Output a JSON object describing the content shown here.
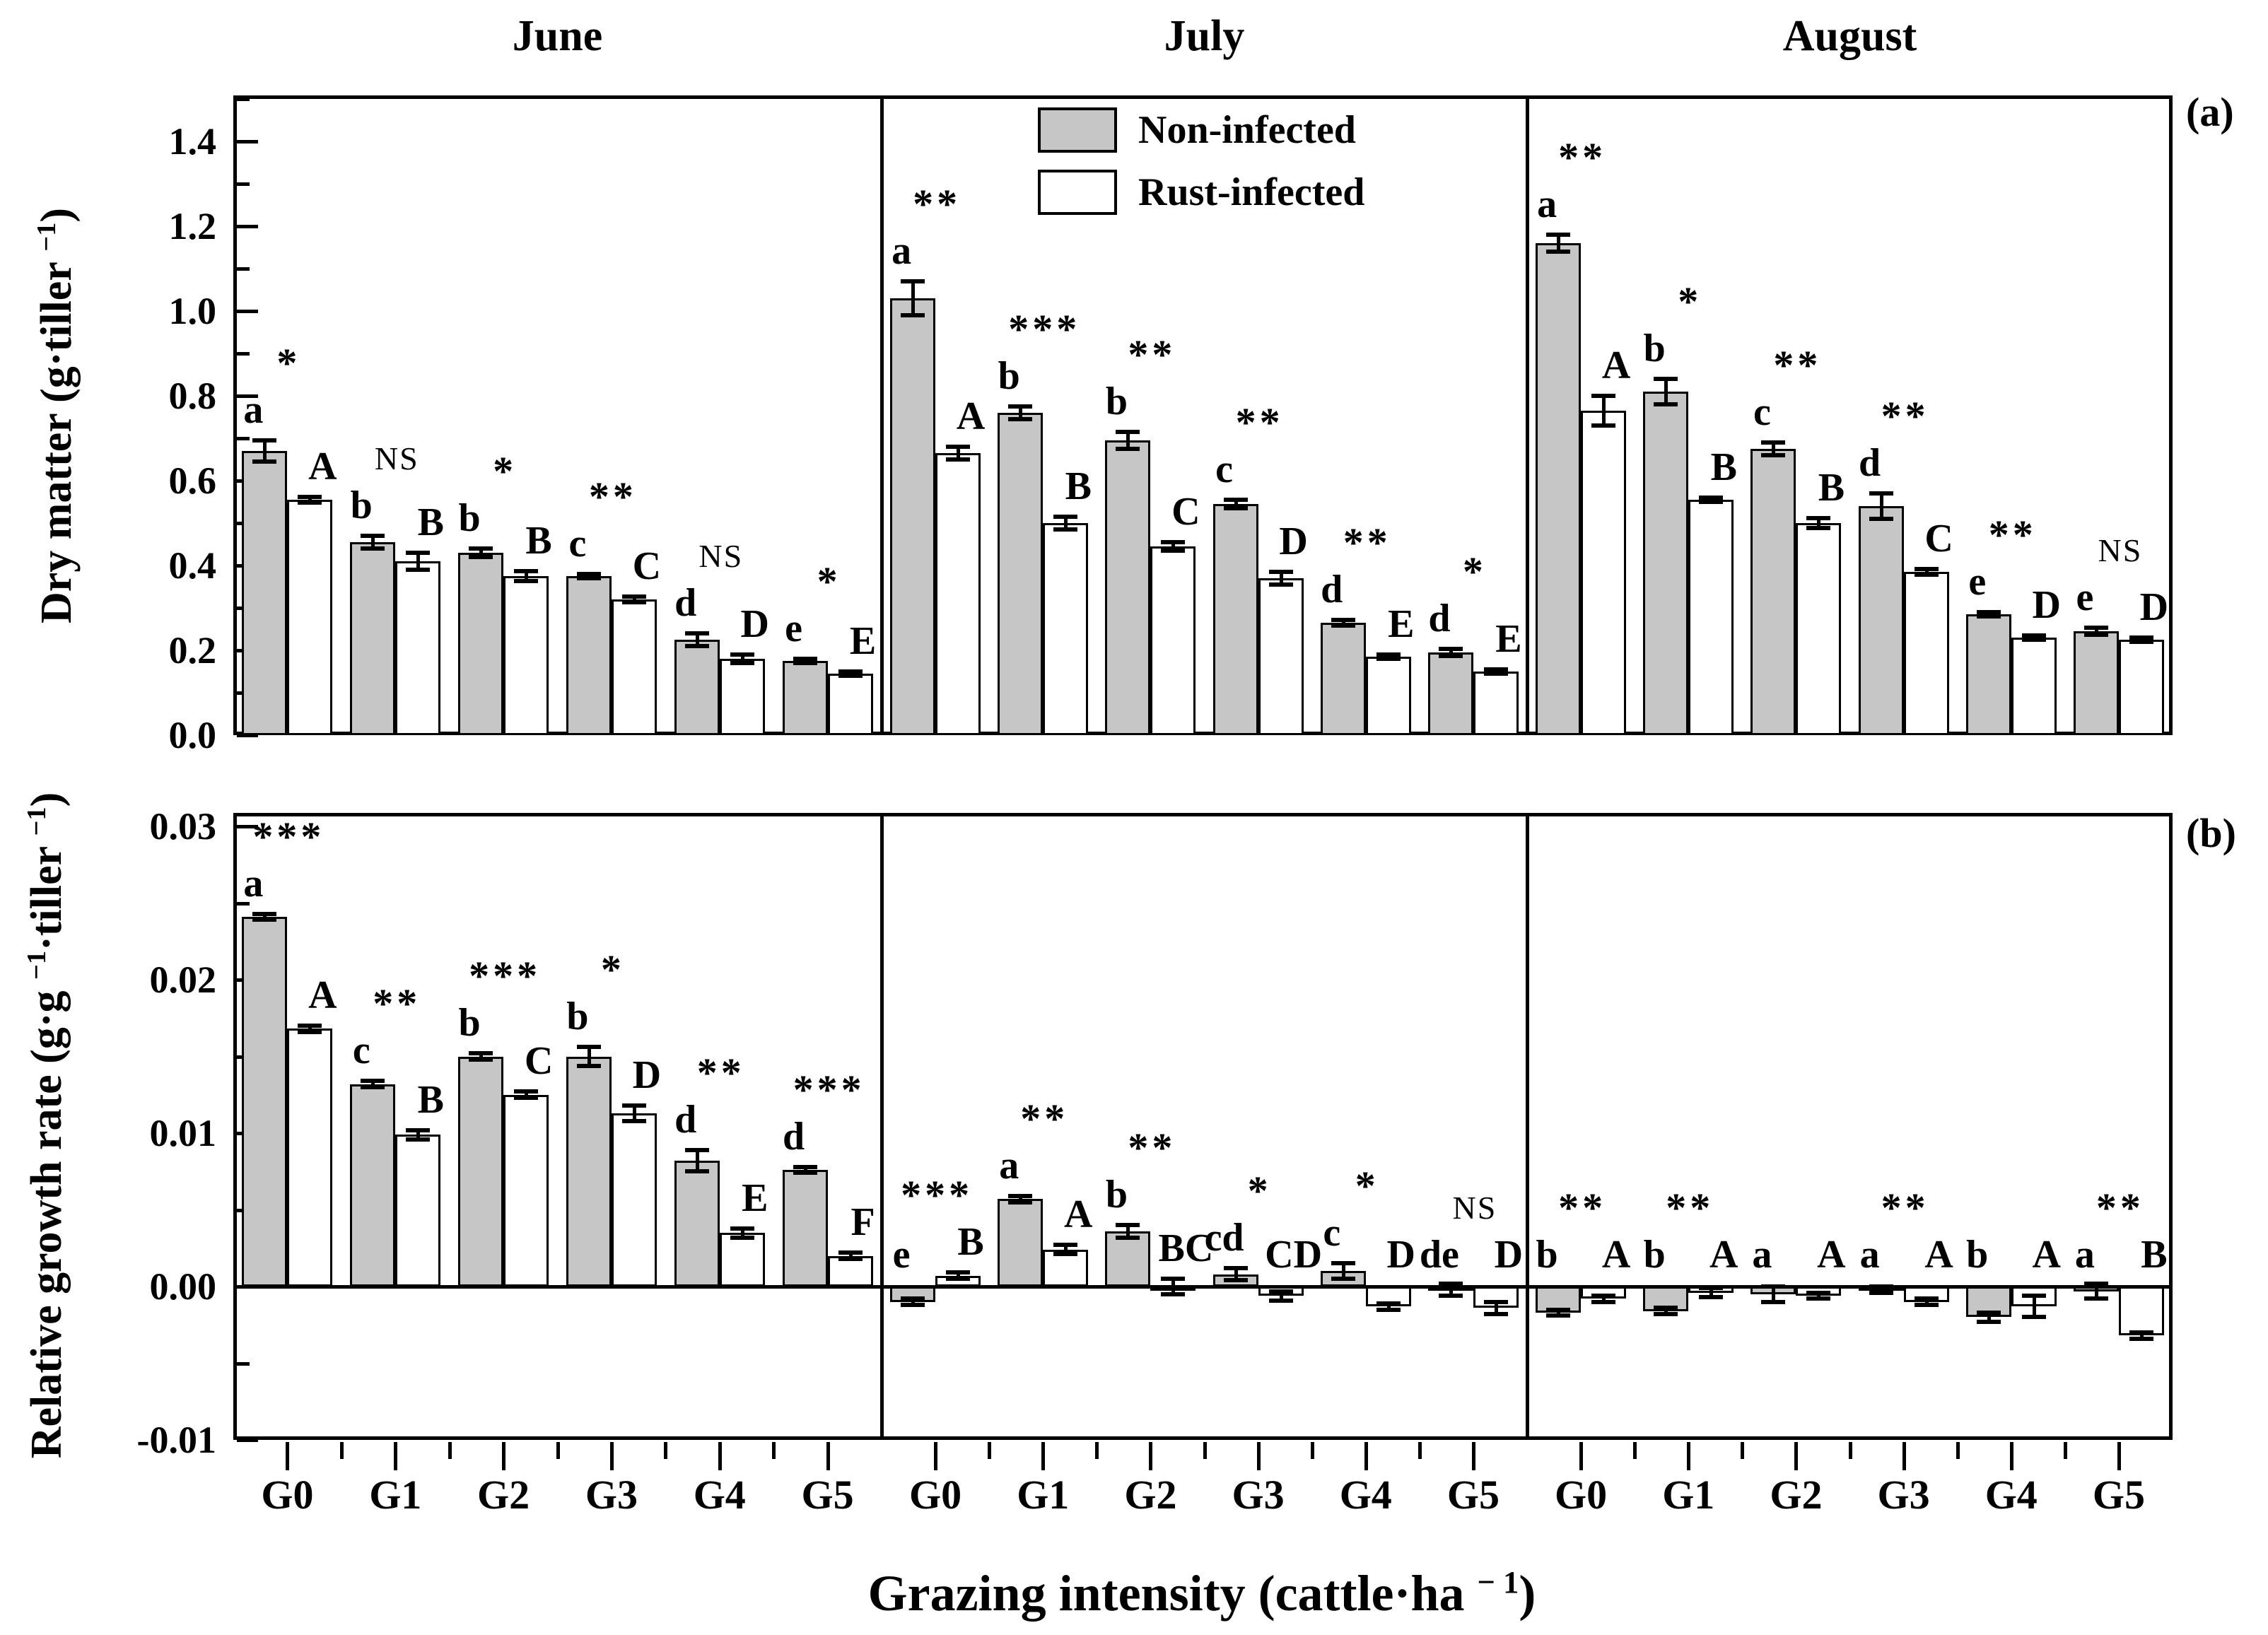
{
  "figure": {
    "months": [
      "June",
      "July",
      "August"
    ],
    "categories": [
      "G0",
      "G1",
      "G2",
      "G3",
      "G4",
      "G5"
    ],
    "panel_tags": [
      "(a)",
      "(b)"
    ],
    "xlabel": "Grazing intensity (cattle·ha⁻¹)",
    "significance_codes": [
      "*",
      "**",
      "***",
      "NS"
    ],
    "bar_fill_non_infected": "#c6c6c6",
    "bar_fill_rust_infected": "#ffffff",
    "line_color": "#000000"
  },
  "legend": {
    "items": [
      {
        "label": "Non-infected",
        "fill": "#c6c6c6"
      },
      {
        "label": "Rust-infected",
        "fill": "#ffffff"
      }
    ]
  },
  "labels": {
    "dry_matter": {
      "pre": "Dry matter (g·tiller ",
      "sup": "−1",
      "post": ")"
    },
    "growth_rate": {
      "pre": "Relative growth rate (g·g ",
      "sup1": "−1",
      "mid": "·tiller ",
      "sup2": "−1",
      "post": ")"
    },
    "xaxis": {
      "pre": "Grazing intensity (cattle·ha ",
      "sup": "− 1",
      "post": ")"
    }
  },
  "chart_data": [
    {
      "id": "dry-matter",
      "type": "bar",
      "panel_tag": "(a)",
      "ylabel": "Dry matter (g·tiller⁻¹)",
      "ylim": [
        0,
        1.5
      ],
      "ytick_values": [
        0.0,
        0.2,
        0.4,
        0.6,
        0.8,
        1.0,
        1.2,
        1.4
      ],
      "ytick_labels": [
        "0.0",
        "0.2",
        "0.4",
        "0.6",
        "0.8",
        "1.0",
        "1.2",
        "1.4"
      ],
      "minor_ticks": [
        0.1,
        0.3,
        0.5,
        0.7,
        0.9,
        1.1,
        1.3,
        1.5
      ],
      "series_names": [
        "Non-infected",
        "Rust-infected"
      ],
      "months": [
        {
          "name": "June",
          "groups": [
            {
              "category": "G0",
              "non_infected": {
                "value": 0.67,
                "error": 0.025,
                "letter": "a"
              },
              "rust_infected": {
                "value": 0.555,
                "error": 0.006,
                "letter": "A"
              },
              "significance": "*"
            },
            {
              "category": "G1",
              "non_infected": {
                "value": 0.455,
                "error": 0.015,
                "letter": "b"
              },
              "rust_infected": {
                "value": 0.41,
                "error": 0.02,
                "letter": "B"
              },
              "significance": "NS"
            },
            {
              "category": "G2",
              "non_infected": {
                "value": 0.43,
                "error": 0.01,
                "letter": "b"
              },
              "rust_infected": {
                "value": 0.375,
                "error": 0.012,
                "letter": "B"
              },
              "significance": "*"
            },
            {
              "category": "G3",
              "non_infected": {
                "value": 0.375,
                "error": 0.005,
                "letter": "c"
              },
              "rust_infected": {
                "value": 0.32,
                "error": 0.006,
                "letter": "C"
              },
              "significance": "**"
            },
            {
              "category": "G4",
              "non_infected": {
                "value": 0.225,
                "error": 0.015,
                "letter": "d"
              },
              "rust_infected": {
                "value": 0.18,
                "error": 0.01,
                "letter": "D"
              },
              "significance": "NS"
            },
            {
              "category": "G5",
              "non_infected": {
                "value": 0.175,
                "error": 0.005,
                "letter": "e"
              },
              "rust_infected": {
                "value": 0.145,
                "error": 0.005,
                "letter": "E"
              },
              "significance": "*"
            }
          ]
        },
        {
          "name": "July",
          "groups": [
            {
              "category": "G0",
              "non_infected": {
                "value": 1.03,
                "error": 0.04,
                "letter": "a"
              },
              "rust_infected": {
                "value": 0.665,
                "error": 0.015,
                "letter": "A"
              },
              "significance": "**"
            },
            {
              "category": "G1",
              "non_infected": {
                "value": 0.76,
                "error": 0.015,
                "letter": "b"
              },
              "rust_infected": {
                "value": 0.5,
                "error": 0.015,
                "letter": "B"
              },
              "significance": "***"
            },
            {
              "category": "G2",
              "non_infected": {
                "value": 0.695,
                "error": 0.02,
                "letter": "b"
              },
              "rust_infected": {
                "value": 0.445,
                "error": 0.01,
                "letter": "C"
              },
              "significance": "**"
            },
            {
              "category": "G3",
              "non_infected": {
                "value": 0.545,
                "error": 0.01,
                "letter": "c"
              },
              "rust_infected": {
                "value": 0.37,
                "error": 0.015,
                "letter": "D"
              },
              "significance": "**"
            },
            {
              "category": "G4",
              "non_infected": {
                "value": 0.265,
                "error": 0.006,
                "letter": "d"
              },
              "rust_infected": {
                "value": 0.185,
                "error": 0.005,
                "letter": "E"
              },
              "significance": "**"
            },
            {
              "category": "G5",
              "non_infected": {
                "value": 0.195,
                "error": 0.008,
                "letter": "d"
              },
              "rust_infected": {
                "value": 0.15,
                "error": 0.005,
                "letter": "E"
              },
              "significance": "*"
            }
          ]
        },
        {
          "name": "August",
          "groups": [
            {
              "category": "G0",
              "non_infected": {
                "value": 1.16,
                "error": 0.02,
                "letter": "a"
              },
              "rust_infected": {
                "value": 0.765,
                "error": 0.035,
                "letter": "A"
              },
              "significance": "**"
            },
            {
              "category": "G1",
              "non_infected": {
                "value": 0.81,
                "error": 0.03,
                "letter": "b"
              },
              "rust_infected": {
                "value": 0.555,
                "error": 0.005,
                "letter": "B"
              },
              "significance": "*"
            },
            {
              "category": "G2",
              "non_infected": {
                "value": 0.675,
                "error": 0.015,
                "letter": "c"
              },
              "rust_infected": {
                "value": 0.5,
                "error": 0.012,
                "letter": "B"
              },
              "significance": "**"
            },
            {
              "category": "G3",
              "non_infected": {
                "value": 0.54,
                "error": 0.03,
                "letter": "d"
              },
              "rust_infected": {
                "value": 0.385,
                "error": 0.006,
                "letter": "C"
              },
              "significance": "**"
            },
            {
              "category": "G4",
              "non_infected": {
                "value": 0.285,
                "error": 0.005,
                "letter": "e"
              },
              "rust_infected": {
                "value": 0.23,
                "error": 0.005,
                "letter": "D"
              },
              "significance": "**"
            },
            {
              "category": "G5",
              "non_infected": {
                "value": 0.245,
                "error": 0.008,
                "letter": "e"
              },
              "rust_infected": {
                "value": 0.225,
                "error": 0.005,
                "letter": "D"
              },
              "significance": "NS"
            }
          ]
        }
      ]
    },
    {
      "id": "relative-growth-rate",
      "type": "bar",
      "panel_tag": "(b)",
      "ylabel": "Relative growth rate (g·g⁻¹·tiller⁻¹)",
      "ylim": [
        -0.01,
        0.03
      ],
      "ytick_values": [
        -0.01,
        0.0,
        0.01,
        0.02,
        0.03
      ],
      "ytick_labels": [
        "-0.01",
        "0.00",
        "0.01",
        "0.02",
        "0.03"
      ],
      "minor_ticks": [
        -0.005,
        0.005,
        0.015,
        0.025
      ],
      "series_names": [
        "Non-infected",
        "Rust-infected"
      ],
      "months": [
        {
          "name": "June",
          "groups": [
            {
              "category": "G0",
              "non_infected": {
                "value": 0.0241,
                "error": 0.0002,
                "letter": "a"
              },
              "rust_infected": {
                "value": 0.0168,
                "error": 0.0002,
                "letter": "A"
              },
              "significance": "***"
            },
            {
              "category": "G1",
              "non_infected": {
                "value": 0.0132,
                "error": 0.0002,
                "letter": "c"
              },
              "rust_infected": {
                "value": 0.0099,
                "error": 0.0003,
                "letter": "B"
              },
              "significance": "**"
            },
            {
              "category": "G2",
              "non_infected": {
                "value": 0.015,
                "error": 0.0002,
                "letter": "b"
              },
              "rust_infected": {
                "value": 0.0125,
                "error": 0.0002,
                "letter": "C"
              },
              "significance": "***"
            },
            {
              "category": "G3",
              "non_infected": {
                "value": 0.015,
                "error": 0.0006,
                "letter": "b"
              },
              "rust_infected": {
                "value": 0.0113,
                "error": 0.0005,
                "letter": "D"
              },
              "significance": "*"
            },
            {
              "category": "G4",
              "non_infected": {
                "value": 0.0082,
                "error": 0.0007,
                "letter": "d"
              },
              "rust_infected": {
                "value": 0.0035,
                "error": 0.0003,
                "letter": "E"
              },
              "significance": "**"
            },
            {
              "category": "G5",
              "non_infected": {
                "value": 0.0076,
                "error": 0.0002,
                "letter": "d"
              },
              "rust_infected": {
                "value": 0.002,
                "error": 0.0002,
                "letter": "F"
              },
              "significance": "***"
            }
          ]
        },
        {
          "name": "July",
          "groups": [
            {
              "category": "G0",
              "non_infected": {
                "value": -0.001,
                "error": 0.0002,
                "letter": "e"
              },
              "rust_infected": {
                "value": 0.0007,
                "error": 0.0002,
                "letter": "B"
              },
              "significance": "***"
            },
            {
              "category": "G1",
              "non_infected": {
                "value": 0.0057,
                "error": 0.0002,
                "letter": "a"
              },
              "rust_infected": {
                "value": 0.0024,
                "error": 0.0003,
                "letter": "A"
              },
              "significance": "**"
            },
            {
              "category": "G2",
              "non_infected": {
                "value": 0.0036,
                "error": 0.0004,
                "letter": "b"
              },
              "rust_infected": {
                "value": 0.0,
                "error": 0.0005,
                "letter": "BC"
              },
              "significance": "**"
            },
            {
              "category": "G3",
              "non_infected": {
                "value": 0.0008,
                "error": 0.0004,
                "letter": "cd"
              },
              "rust_infected": {
                "value": -0.0006,
                "error": 0.0003,
                "letter": "CD"
              },
              "significance": "*"
            },
            {
              "category": "G4",
              "non_infected": {
                "value": 0.001,
                "error": 0.0005,
                "letter": "c"
              },
              "rust_infected": {
                "value": -0.0013,
                "error": 0.0002,
                "letter": "D"
              },
              "significance": "*"
            },
            {
              "category": "G5",
              "non_infected": {
                "value": -0.0002,
                "error": 0.0004,
                "letter": "de"
              },
              "rust_infected": {
                "value": -0.0014,
                "error": 0.0004,
                "letter": "D"
              },
              "significance": "NS"
            }
          ]
        },
        {
          "name": "August",
          "groups": [
            {
              "category": "G0",
              "non_infected": {
                "value": -0.0017,
                "error": 0.0002,
                "letter": "b"
              },
              "rust_infected": {
                "value": -0.0008,
                "error": 0.0002,
                "letter": "A"
              },
              "significance": "**"
            },
            {
              "category": "G1",
              "non_infected": {
                "value": -0.0016,
                "error": 0.0002,
                "letter": "b"
              },
              "rust_infected": {
                "value": -0.0004,
                "error": 0.0003,
                "letter": "A"
              },
              "significance": "**"
            },
            {
              "category": "G2",
              "non_infected": {
                "value": -0.0005,
                "error": 0.0005,
                "letter": "a"
              },
              "rust_infected": {
                "value": -0.0006,
                "error": 0.0002,
                "letter": "A"
              },
              "significance": null
            },
            {
              "category": "G3",
              "non_infected": {
                "value": -0.0002,
                "error": 0.0002,
                "letter": "a"
              },
              "rust_infected": {
                "value": -0.001,
                "error": 0.0002,
                "letter": "A"
              },
              "significance": "**"
            },
            {
              "category": "G4",
              "non_infected": {
                "value": -0.002,
                "error": 0.0003,
                "letter": "b"
              },
              "rust_infected": {
                "value": -0.0013,
                "error": 0.0007,
                "letter": "A"
              },
              "significance": null
            },
            {
              "category": "G5",
              "non_infected": {
                "value": -0.0003,
                "error": 0.0005,
                "letter": "a"
              },
              "rust_infected": {
                "value": -0.0032,
                "error": 0.0002,
                "letter": "B"
              },
              "significance": "**"
            }
          ]
        }
      ]
    }
  ]
}
